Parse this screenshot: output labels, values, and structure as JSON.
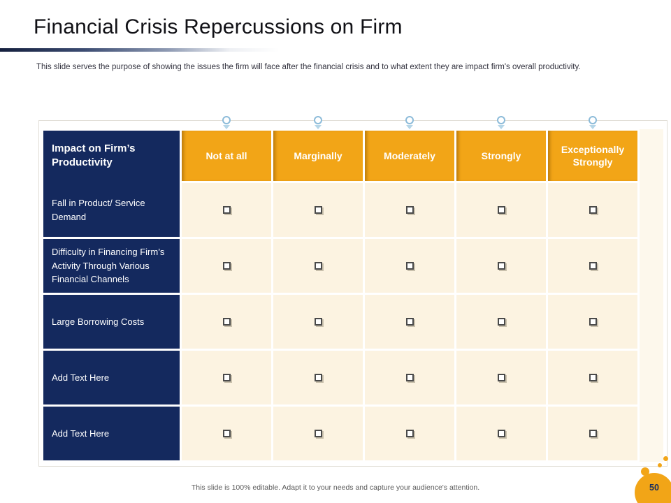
{
  "slide": {
    "title": "Financial Crisis Repercussions on Firm",
    "description": "This slide serves the purpose of showing the issues the firm will face after the financial crisis and to what extent they are impact firm's overall productivity.",
    "footer_note": "This slide is 100% editable. Adapt it to your needs and capture your audience's attention.",
    "page_number": "50"
  },
  "table": {
    "corner_header": "Impact on Firm’s Productivity",
    "columns": [
      "Not at all",
      "Marginally",
      "Moderately",
      "Strongly",
      "Exceptionally Strongly"
    ],
    "rows": [
      {
        "label": "Fall in Product/ Service Demand",
        "checkboxes": [
          "unchecked",
          "unchecked",
          "unchecked",
          "unchecked",
          "unchecked"
        ]
      },
      {
        "label": "Difficulty in Financing Firm’s Activity Through Various Financial Channels",
        "checkboxes": [
          "unchecked",
          "unchecked",
          "unchecked",
          "unchecked",
          "unchecked"
        ]
      },
      {
        "label": "Large Borrowing Costs",
        "checkboxes": [
          "unchecked",
          "unchecked",
          "unchecked",
          "unchecked",
          "unchecked"
        ]
      },
      {
        "label": "Add Text Here",
        "checkboxes": [
          "unchecked",
          "unchecked",
          "unchecked",
          "unchecked",
          "unchecked"
        ]
      },
      {
        "label": "Add Text Here",
        "checkboxes": [
          "unchecked",
          "unchecked",
          "unchecked",
          "unchecked",
          "unchecked"
        ]
      }
    ]
  },
  "colors": {
    "navy": "#14295e",
    "amber": "#f2a517",
    "cream_cell": "#fcf3e1",
    "marker_blue": "#8cbbd9",
    "footer_gray": "#5b5b5b",
    "title_black": "#111116"
  }
}
